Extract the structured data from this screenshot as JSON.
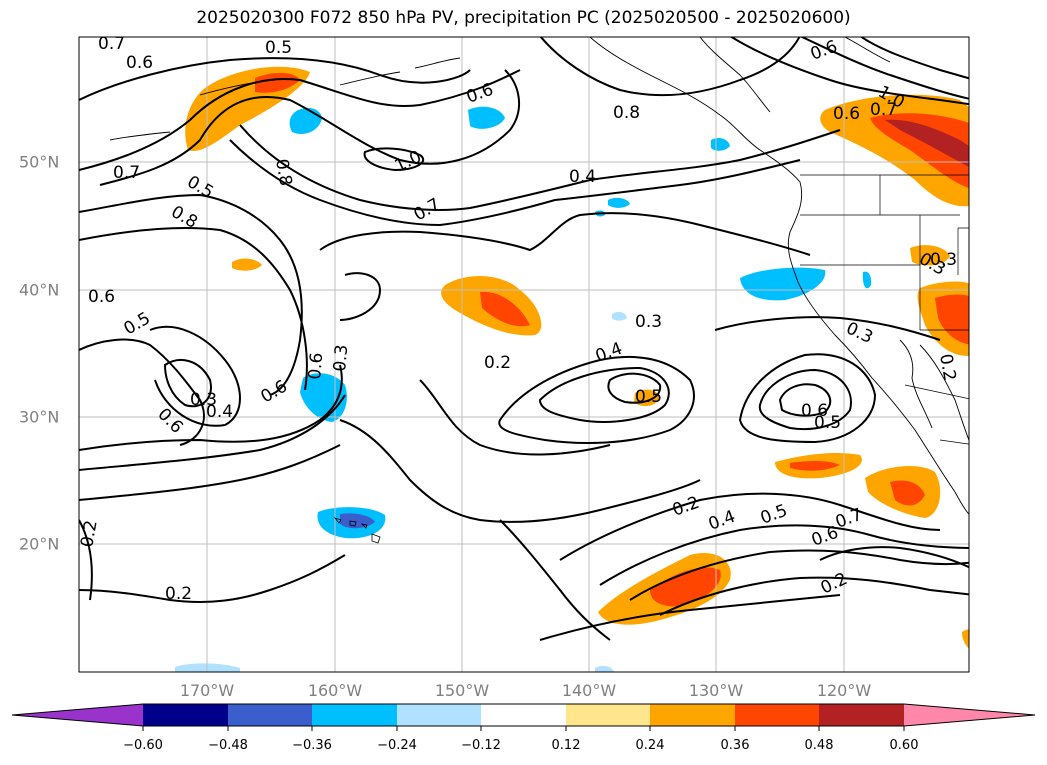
{
  "title": "2025020300 F072 850 hPa PV, precipitation PC (2025020500 - 2025020600)",
  "lon_labels": [
    "170°W",
    "160°W",
    "150°W",
    "140°W",
    "130°W",
    "120°W"
  ],
  "lat_labels": [
    "50°N",
    "40°N",
    "30°N",
    "20°N"
  ],
  "contour_labels": [
    "0.7",
    "0.5",
    "0.6",
    "0.7",
    "0.5",
    "0.8",
    "0.6",
    "0.8",
    "1.0",
    "0.4",
    "0.7",
    "0.6",
    "0.8",
    "1.0",
    "0.6",
    "0.7",
    "0.6",
    "0.6",
    "0.5",
    "0.3",
    "0.4",
    "0.6",
    "0.6",
    "0.3",
    "0.3",
    "0.2",
    "0.4",
    "0.5",
    "0.3",
    "0.6",
    "0.5",
    "0.3",
    "0.2",
    "0.2",
    "0.4",
    "0.5",
    "0.7",
    "0.6",
    "0.2",
    "0.2",
    "0.2",
    "0.3"
  ],
  "colorbar": {
    "ticks": [
      "−0.60",
      "−0.48",
      "−0.36",
      "−0.24",
      "−0.12",
      "0.12",
      "0.24",
      "0.36",
      "0.48",
      "0.60"
    ],
    "colors": [
      "#9933cc",
      "#00008b",
      "#3a5fcd",
      "#00bfff",
      "#b0e2ff",
      "#ffffff",
      "#ffe68c",
      "#ffa500",
      "#ff4500",
      "#b22222",
      "#ff88aa"
    ]
  }
}
